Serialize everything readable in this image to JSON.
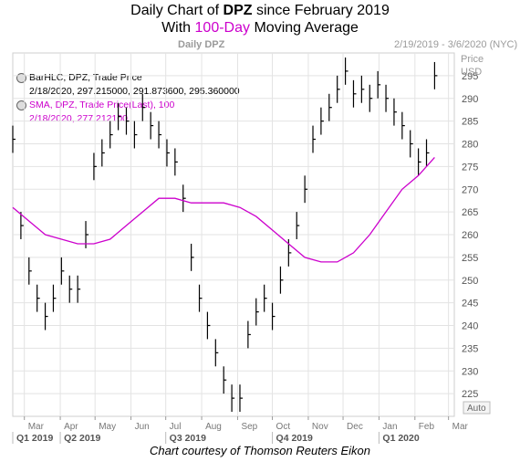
{
  "title": {
    "prefix": "Daily Chart of ",
    "ticker": "DPZ",
    "suffix": " since February 2019"
  },
  "subtitle": {
    "prefix": "With ",
    "highlight": "100-Day",
    "suffix": " Moving Average"
  },
  "header": {
    "left": "Daily DPZ",
    "right": "2/19/2019 - 3/6/2020 (NYC)"
  },
  "price_axis": {
    "label1": "Price",
    "label2": "USD",
    "auto": "Auto"
  },
  "legend": {
    "series1_title": "BarHLC, DPZ, Trade Price",
    "series1_values": "2/18/2020, 297.215000, 291.873600, 295.360000",
    "series2_title": "SMA, DPZ, Trade Price(Last),  100",
    "series2_values": "2/18/2020, 277.212100"
  },
  "credit": "Chart courtesy of Thomson Reuters Eikon",
  "colors": {
    "bars": "#000000",
    "sma": "#cc00cc",
    "grid": "#e3e3e3",
    "axis_text": "#555555"
  },
  "chart_data": {
    "type": "line",
    "title": "Daily Chart of DPZ since February 2019",
    "subtitle": "With 100-Day Moving Average",
    "ylabel": "Price USD",
    "ylim": [
      220,
      300
    ],
    "yticks": [
      225,
      230,
      235,
      240,
      245,
      250,
      255,
      260,
      265,
      270,
      275,
      280,
      285,
      290,
      295
    ],
    "grid": true,
    "x_months": [
      "Mar",
      "Apr",
      "May",
      "Jun",
      "Jul",
      "Aug",
      "Sep",
      "Oct",
      "Nov",
      "Dec",
      "Jan",
      "Feb",
      "Mar"
    ],
    "x_quarters": [
      "Q1 2019",
      "Q2 2019",
      "Q3 2019",
      "Q4 2019",
      "Q1 2020"
    ],
    "series": [
      {
        "name": "BarHLC, DPZ, Trade Price",
        "style": "hlc-bars",
        "x": [
          "2019-02-19",
          "2019-02-26",
          "2019-03-05",
          "2019-03-12",
          "2019-03-19",
          "2019-03-26",
          "2019-04-02",
          "2019-04-09",
          "2019-04-16",
          "2019-04-23",
          "2019-04-30",
          "2019-05-07",
          "2019-05-14",
          "2019-05-21",
          "2019-05-28",
          "2019-06-04",
          "2019-06-11",
          "2019-06-18",
          "2019-06-25",
          "2019-07-02",
          "2019-07-09",
          "2019-07-16",
          "2019-07-23",
          "2019-07-30",
          "2019-08-06",
          "2019-08-13",
          "2019-08-20",
          "2019-08-27",
          "2019-09-03",
          "2019-09-10",
          "2019-09-17",
          "2019-09-24",
          "2019-10-01",
          "2019-10-08",
          "2019-10-15",
          "2019-10-22",
          "2019-10-29",
          "2019-11-05",
          "2019-11-12",
          "2019-11-19",
          "2019-11-26",
          "2019-12-03",
          "2019-12-10",
          "2019-12-17",
          "2019-12-24",
          "2019-12-31",
          "2020-01-07",
          "2020-01-14",
          "2020-01-21",
          "2020-01-28",
          "2020-02-04",
          "2020-02-11",
          "2020-02-18"
        ],
        "values": [
          281,
          262,
          252,
          246,
          242,
          246,
          252,
          248,
          248,
          260,
          275,
          278,
          282,
          286,
          285,
          282,
          288,
          284,
          282,
          278,
          276,
          268,
          255,
          246,
          240,
          234,
          228,
          224,
          224,
          238,
          243,
          246,
          242,
          250,
          256,
          262,
          270,
          281,
          285,
          288,
          292,
          296,
          291,
          292,
          290,
          293,
          290,
          287,
          284,
          280,
          276,
          278,
          295
        ]
      },
      {
        "name": "SMA, DPZ, Trade Price(Last),  100",
        "style": "line",
        "x": [
          "2019-02-19",
          "2019-03-05",
          "2019-03-19",
          "2019-04-02",
          "2019-04-16",
          "2019-04-30",
          "2019-05-14",
          "2019-05-28",
          "2019-06-11",
          "2019-06-25",
          "2019-07-09",
          "2019-07-23",
          "2019-08-06",
          "2019-08-20",
          "2019-09-03",
          "2019-09-17",
          "2019-10-01",
          "2019-10-15",
          "2019-10-29",
          "2019-11-12",
          "2019-11-26",
          "2019-12-10",
          "2019-12-24",
          "2020-01-07",
          "2020-01-21",
          "2020-02-04",
          "2020-02-18"
        ],
        "values": [
          266,
          263,
          260,
          259,
          258,
          258,
          259,
          262,
          265,
          268,
          268,
          267,
          267,
          267,
          266,
          264,
          261,
          258,
          255,
          254,
          254,
          256,
          260,
          265,
          270,
          273,
          277
        ]
      }
    ]
  }
}
